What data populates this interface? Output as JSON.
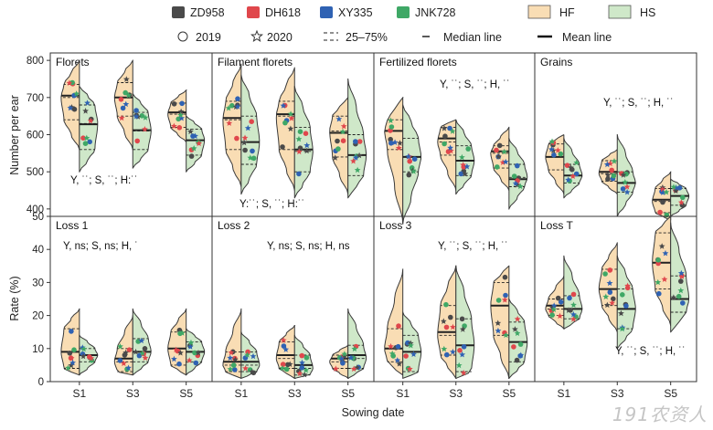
{
  "legend": {
    "cultivars": [
      {
        "label": "ZD958",
        "color": "#4a4a4a"
      },
      {
        "label": "DH618",
        "color": "#e0474c"
      },
      {
        "label": "XY335",
        "color": "#2f62b3"
      },
      {
        "label": "JNK728",
        "color": "#3fa866"
      }
    ],
    "treatments": [
      {
        "label": "HF",
        "color": "#f9ddb4"
      },
      {
        "label": "HS",
        "color": "#cfe8c9"
      }
    ],
    "years": [
      {
        "label": "2019",
        "marker": "circle"
      },
      {
        "label": "2020",
        "marker": "star"
      }
    ],
    "lines": [
      {
        "label": "25–75%",
        "style": "dashed"
      },
      {
        "label": "Median line",
        "style": "short"
      },
      {
        "label": "Mean line",
        "style": "thick"
      }
    ]
  },
  "axes": {
    "xlabel": "Sowing date",
    "top_ylabel": "Number per ear",
    "bottom_ylabel": "Rate (%)",
    "x_ticks": [
      "S1",
      "S3",
      "S5"
    ],
    "top_yticks": [
      400,
      500,
      600,
      700,
      800
    ],
    "bottom_yticks": [
      0,
      10,
      20,
      30,
      40,
      50
    ]
  },
  "watermark": "191农资人",
  "chart_data": [
    {
      "type": "violin",
      "title": "Florets",
      "annotation": "Y, ˙˙; S, ˙˙; H:˙˙",
      "ylim": [
        380,
        820
      ],
      "groups": [
        {
          "x": "S1",
          "hf": {
            "min": 560,
            "max": 800,
            "q1": 640,
            "q3": 735,
            "median": 700,
            "mean": 705
          },
          "hs": {
            "min": 500,
            "max": 730,
            "q1": 560,
            "q3": 680,
            "median": 630,
            "mean": 628
          }
        },
        {
          "x": "S3",
          "hf": {
            "min": 560,
            "max": 800,
            "q1": 650,
            "q3": 740,
            "median": 700,
            "mean": 700
          },
          "hs": {
            "min": 510,
            "max": 710,
            "q1": 560,
            "q3": 660,
            "median": 610,
            "mean": 612
          }
        },
        {
          "x": "S5",
          "hf": {
            "min": 580,
            "max": 720,
            "q1": 620,
            "q3": 685,
            "median": 655,
            "mean": 660
          },
          "hs": {
            "min": 500,
            "max": 650,
            "q1": 545,
            "q3": 615,
            "median": 585,
            "mean": 585
          }
        }
      ]
    },
    {
      "type": "violin",
      "title": "Filament florets",
      "annotation": "Y:˙˙; S, ˙˙; H:˙˙",
      "ylim": [
        380,
        820
      ],
      "groups": [
        {
          "x": "S1",
          "hf": {
            "min": 460,
            "max": 790,
            "q1": 560,
            "q3": 690,
            "median": 640,
            "mean": 645
          },
          "hs": {
            "min": 440,
            "max": 760,
            "q1": 520,
            "q3": 650,
            "median": 580,
            "mean": 580
          }
        },
        {
          "x": "S3",
          "hf": {
            "min": 450,
            "max": 780,
            "q1": 560,
            "q3": 690,
            "median": 650,
            "mean": 655
          },
          "hs": {
            "min": 430,
            "max": 730,
            "q1": 500,
            "q3": 620,
            "median": 555,
            "mean": 560
          }
        },
        {
          "x": "S5",
          "hf": {
            "min": 440,
            "max": 700,
            "q1": 540,
            "q3": 650,
            "median": 610,
            "mean": 605
          },
          "hs": {
            "min": 430,
            "max": 750,
            "q1": 490,
            "q3": 600,
            "median": 545,
            "mean": 545
          }
        }
      ]
    },
    {
      "type": "violin",
      "title": "Fertilized florets",
      "annotation": "Y, ˙˙; S, ˙˙; H, ˙˙",
      "ylim": [
        380,
        820
      ],
      "groups": [
        {
          "x": "S1",
          "hf": {
            "min": 360,
            "max": 700,
            "q1": 560,
            "q3": 640,
            "median": 610,
            "mean": 610
          },
          "hs": {
            "min": 360,
            "max": 680,
            "q1": 500,
            "q3": 590,
            "median": 540,
            "mean": 540
          }
        },
        {
          "x": "S3",
          "hf": {
            "min": 450,
            "max": 640,
            "q1": 545,
            "q3": 620,
            "median": 580,
            "mean": 590
          },
          "hs": {
            "min": 440,
            "max": 640,
            "q1": 490,
            "q3": 570,
            "median": 530,
            "mean": 530
          }
        },
        {
          "x": "S5",
          "hf": {
            "min": 450,
            "max": 620,
            "q1": 510,
            "q3": 570,
            "median": 550,
            "mean": 555
          },
          "hs": {
            "min": 400,
            "max": 590,
            "q1": 460,
            "q3": 520,
            "median": 485,
            "mean": 480
          }
        }
      ]
    },
    {
      "type": "violin",
      "title": "Grains",
      "annotation": "Y, ˙˙; S, ˙˙; H, ˙˙",
      "ylim": [
        380,
        820
      ],
      "groups": [
        {
          "x": "S1",
          "hf": {
            "min": 440,
            "max": 600,
            "q1": 505,
            "q3": 575,
            "median": 540,
            "mean": 540
          },
          "hs": {
            "min": 430,
            "max": 590,
            "q1": 470,
            "q3": 520,
            "median": 490,
            "mean": 490
          }
        },
        {
          "x": "S3",
          "hf": {
            "min": 440,
            "max": 560,
            "q1": 475,
            "q3": 530,
            "median": 495,
            "mean": 500
          },
          "hs": {
            "min": 380,
            "max": 600,
            "q1": 445,
            "q3": 500,
            "median": 470,
            "mean": 470
          }
        },
        {
          "x": "S5",
          "hf": {
            "min": 370,
            "max": 500,
            "q1": 390,
            "q3": 455,
            "median": 420,
            "mean": 425
          },
          "hs": {
            "min": 380,
            "max": 480,
            "q1": 410,
            "q3": 455,
            "median": 435,
            "mean": 435
          }
        }
      ]
    },
    {
      "type": "violin",
      "title": "Loss 1",
      "annotation": "Y, ns; S, ns; H, ˙",
      "ylim": [
        0,
        50
      ],
      "groups": [
        {
          "x": "S1",
          "hf": {
            "min": 2,
            "max": 22,
            "q1": 4,
            "q3": 16,
            "median": 9,
            "mean": 9
          },
          "hs": {
            "min": 2,
            "max": 14,
            "q1": 6,
            "q3": 10,
            "median": 8,
            "mean": 8
          }
        },
        {
          "x": "S3",
          "hf": {
            "min": 2,
            "max": 20,
            "q1": 3,
            "q3": 10,
            "median": 6,
            "mean": 7
          },
          "hs": {
            "min": 2,
            "max": 22,
            "q1": 6,
            "q3": 13,
            "median": 9,
            "mean": 9
          }
        },
        {
          "x": "S5",
          "hf": {
            "min": 2,
            "max": 22,
            "q1": 5,
            "q3": 15,
            "median": 10,
            "mean": 10
          },
          "hs": {
            "min": 2,
            "max": 16,
            "q1": 6,
            "q3": 12,
            "median": 9,
            "mean": 9
          }
        }
      ]
    },
    {
      "type": "violin",
      "title": "Loss 2",
      "annotation": "Y, ns; S, ns; H, ns",
      "ylim": [
        0,
        50
      ],
      "groups": [
        {
          "x": "S1",
          "hf": {
            "min": 1,
            "max": 22,
            "q1": 3,
            "q3": 9,
            "median": 5,
            "mean": 6
          },
          "hs": {
            "min": 1,
            "max": 15,
            "q1": 3,
            "q3": 9,
            "median": 5,
            "mean": 6
          }
        },
        {
          "x": "S3",
          "hf": {
            "min": 1,
            "max": 17,
            "q1": 4,
            "q3": 12,
            "median": 7,
            "mean": 8
          },
          "hs": {
            "min": 1,
            "max": 14,
            "q1": 2,
            "q3": 8,
            "median": 4,
            "mean": 5
          }
        },
        {
          "x": "S5",
          "hf": {
            "min": 1,
            "max": 11,
            "q1": 4,
            "q3": 8,
            "median": 6,
            "mean": 7
          },
          "hs": {
            "min": 1,
            "max": 22,
            "q1": 4,
            "q3": 11,
            "median": 7,
            "mean": 8
          }
        }
      ]
    },
    {
      "type": "violin",
      "title": "Loss 3",
      "annotation": "Y, ˙˙; S, ˙˙; H, ˙˙",
      "ylim": [
        0,
        50
      ],
      "groups": [
        {
          "x": "S1",
          "hf": {
            "min": 2,
            "max": 34,
            "q1": 6,
            "q3": 16,
            "median": 10,
            "mean": 10
          },
          "hs": {
            "min": 1,
            "max": 21,
            "q1": 3,
            "q3": 14,
            "median": 9,
            "mean": 9
          }
        },
        {
          "x": "S3",
          "hf": {
            "min": 1,
            "max": 35,
            "q1": 8,
            "q3": 23,
            "median": 14,
            "mean": 15
          },
          "hs": {
            "min": 1,
            "max": 35,
            "q1": 3,
            "q3": 19,
            "median": 11,
            "mean": 11
          }
        },
        {
          "x": "S5",
          "hf": {
            "min": 1,
            "max": 35,
            "q1": 14,
            "q3": 30,
            "median": 23,
            "mean": 23
          },
          "hs": {
            "min": 1,
            "max": 25,
            "q1": 6,
            "q3": 18,
            "median": 12,
            "mean": 12
          }
        }
      ]
    },
    {
      "type": "violin",
      "title": "Loss T",
      "annotation": "Y, ˙˙; S, ˙˙; H, ˙˙",
      "ylim": [
        0,
        50
      ],
      "groups": [
        {
          "x": "S1",
          "hf": {
            "min": 16,
            "max": 32,
            "q1": 20,
            "q3": 25,
            "median": 22,
            "mean": 23
          },
          "hs": {
            "min": 16,
            "max": 38,
            "q1": 19,
            "q3": 26,
            "median": 22,
            "mean": 22
          }
        },
        {
          "x": "S3",
          "hf": {
            "min": 15,
            "max": 42,
            "q1": 23,
            "q3": 34,
            "median": 28,
            "mean": 28
          },
          "hs": {
            "min": 10,
            "max": 38,
            "q1": 16,
            "q3": 28,
            "median": 22,
            "mean": 22
          }
        },
        {
          "x": "S5",
          "hf": {
            "min": 17,
            "max": 50,
            "q1": 28,
            "q3": 45,
            "median": 36,
            "mean": 36
          },
          "hs": {
            "min": 15,
            "max": 48,
            "q1": 21,
            "q3": 32,
            "median": 25,
            "mean": 25
          }
        }
      ]
    }
  ]
}
